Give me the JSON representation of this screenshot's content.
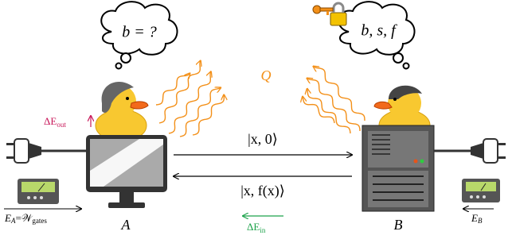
{
  "thoughts": {
    "alice": "b = ?",
    "bob": "b, s, f"
  },
  "heat": "Q",
  "messages": {
    "forward": "|x, 0⟩",
    "backward": "|x, f(x)⟩"
  },
  "energy": {
    "out": {
      "symbol": "ΔE",
      "subscript": "out"
    },
    "in": {
      "symbol": "ΔE",
      "subscript": "in"
    },
    "alice": {
      "lhs": "E",
      "lhs_sub": "A",
      "eq": "=",
      "rhs": "𝒲",
      "rhs_sub": "gates"
    },
    "bob": {
      "lhs": "E",
      "lhs_sub": "B"
    }
  },
  "parties": {
    "alice": "A",
    "bob": "B"
  }
}
